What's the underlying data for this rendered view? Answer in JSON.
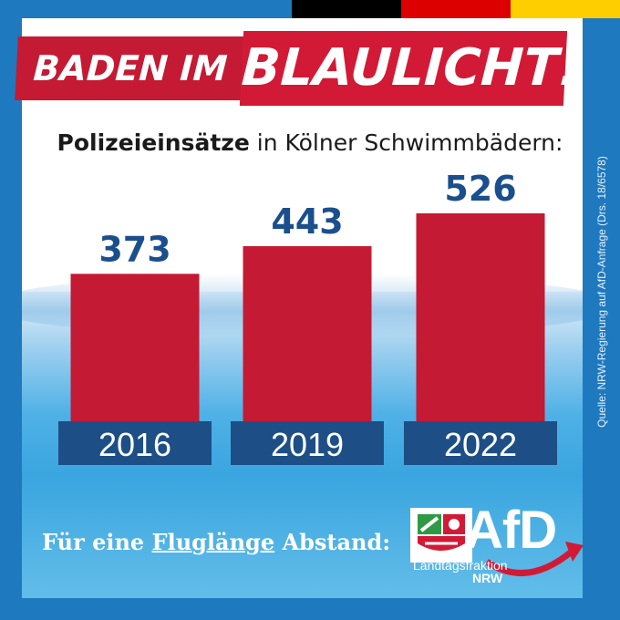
{
  "header": {
    "title_part1": "BADEN IM",
    "title_part2": "BLAULICHT!",
    "subtitle_bold": "Polizeieinsätze",
    "subtitle_rest": " in Kölner Schwimmbädern:"
  },
  "footer": {
    "text_pre": "Für eine ",
    "text_link": "Fluglänge",
    "text_post": " Abstand:"
  },
  "logo": {
    "brand": "AfD",
    "sub1": "Landtagsfraktion",
    "sub2": "NRW"
  },
  "source_note": "Quelle: NRW-Regierung auf AfD-Anfrage (Drs. 18/6578)",
  "colors": {
    "background_blue": "#1e79bf",
    "bar_red": "#c41a33",
    "value_blue": "#1a4f8c",
    "year_box": "#1d4f86",
    "flag": [
      "#000000",
      "#dd0000",
      "#ffce00"
    ]
  },
  "chart_data": {
    "type": "bar",
    "title": "Polizeieinsätze in Kölner Schwimmbädern:",
    "categories": [
      "2016",
      "2019",
      "2022"
    ],
    "values": [
      373,
      443,
      526
    ],
    "xlabel": "",
    "ylabel": "",
    "ylim": [
      0,
      526
    ],
    "grid": false
  }
}
